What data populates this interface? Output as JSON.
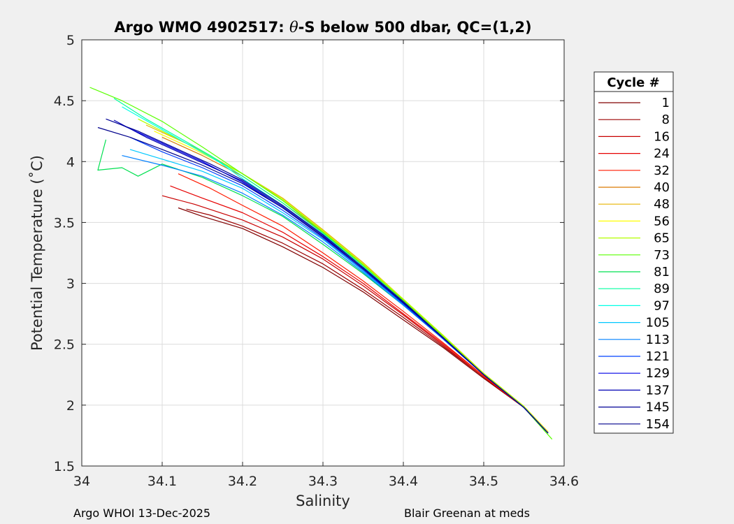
{
  "chart_data": {
    "type": "line",
    "title_prefix": "Argo WMO 4902517: ",
    "title_theta": "θ",
    "title_suffix": "-S below 500 dbar,  QC=(1,2)",
    "xlabel": "Salinity",
    "ylabel": "Potential Temperature (˚C)",
    "xlim": [
      34,
      34.6
    ],
    "ylim": [
      1.5,
      5
    ],
    "xticks": [
      34,
      34.1,
      34.2,
      34.3,
      34.4,
      34.5,
      34.6
    ],
    "xtick_labels": [
      "34",
      "34.1",
      "34.2",
      "34.3",
      "34.4",
      "34.5",
      "34.6"
    ],
    "yticks": [
      1.5,
      2,
      2.5,
      3,
      3.5,
      4,
      4.5,
      5
    ],
    "ytick_labels": [
      "1.5",
      "2",
      "2.5",
      "3",
      "3.5",
      "4",
      "4.5",
      "5"
    ],
    "grid": true,
    "legend_title": "Cycle #",
    "legend_position": "right-outside",
    "series": [
      {
        "name": "1",
        "color": "#800000",
        "salinity": [
          34.12,
          34.15,
          34.2,
          34.25,
          34.3,
          34.35,
          34.4,
          34.45,
          34.5,
          34.55,
          34.58
        ],
        "theta": [
          3.62,
          3.55,
          3.45,
          3.3,
          3.13,
          2.93,
          2.7,
          2.47,
          2.22,
          1.98,
          1.78
        ]
      },
      {
        "name": "8",
        "color": "#9b0000",
        "salinity": [
          34.13,
          34.16,
          34.2,
          34.25,
          34.3,
          34.35,
          34.4,
          34.45,
          34.5,
          34.55,
          34.58
        ],
        "theta": [
          3.61,
          3.56,
          3.47,
          3.33,
          3.16,
          2.95,
          2.72,
          2.48,
          2.23,
          1.98,
          1.78
        ]
      },
      {
        "name": "16",
        "color": "#c80000",
        "salinity": [
          34.1,
          34.14,
          34.2,
          34.25,
          34.3,
          34.35,
          34.4,
          34.45,
          34.5,
          34.55,
          34.58
        ],
        "theta": [
          3.72,
          3.65,
          3.52,
          3.38,
          3.2,
          2.98,
          2.74,
          2.49,
          2.23,
          1.98,
          1.78
        ]
      },
      {
        "name": "24",
        "color": "#e60000",
        "salinity": [
          34.11,
          34.15,
          34.2,
          34.25,
          34.3,
          34.35,
          34.4,
          34.45,
          34.5,
          34.55,
          34.58
        ],
        "theta": [
          3.8,
          3.7,
          3.58,
          3.42,
          3.22,
          3.0,
          2.75,
          2.5,
          2.24,
          1.98,
          1.78
        ]
      },
      {
        "name": "32",
        "color": "#ff1a00",
        "salinity": [
          34.12,
          34.16,
          34.2,
          34.25,
          34.3,
          34.35,
          34.4,
          34.45,
          34.5,
          34.55,
          34.58
        ],
        "theta": [
          3.9,
          3.78,
          3.64,
          3.47,
          3.25,
          3.02,
          2.77,
          2.51,
          2.24,
          1.98,
          1.78
        ]
      },
      {
        "name": "40",
        "color": "#d97a00",
        "salinity": [
          34.1,
          34.15,
          34.2,
          34.25,
          34.3,
          34.35,
          34.4,
          34.45,
          34.5,
          34.55,
          34.58
        ],
        "theta": [
          4.2,
          4.05,
          3.88,
          3.66,
          3.42,
          3.15,
          2.86,
          2.56,
          2.26,
          1.99,
          1.78
        ]
      },
      {
        "name": "48",
        "color": "#e6b400",
        "salinity": [
          34.08,
          34.14,
          34.2,
          34.25,
          34.3,
          34.35,
          34.4,
          34.45,
          34.5,
          34.55,
          34.58
        ],
        "theta": [
          4.3,
          4.12,
          3.9,
          3.7,
          3.44,
          3.17,
          2.87,
          2.57,
          2.26,
          1.99,
          1.78
        ]
      },
      {
        "name": "56",
        "color": "#ffff00",
        "salinity": [
          34.09,
          34.14,
          34.2,
          34.25,
          34.3,
          34.35,
          34.4,
          34.45,
          34.5,
          34.55,
          34.58
        ],
        "theta": [
          4.25,
          4.1,
          3.9,
          3.68,
          3.43,
          3.16,
          2.87,
          2.57,
          2.26,
          1.99,
          1.78
        ]
      },
      {
        "name": "65",
        "color": "#b4ff00",
        "salinity": [
          34.07,
          34.13,
          34.2,
          34.25,
          34.3,
          34.35,
          34.4,
          34.45,
          34.5,
          34.55,
          34.58
        ],
        "theta": [
          4.35,
          4.15,
          3.9,
          3.69,
          3.43,
          3.16,
          2.87,
          2.57,
          2.26,
          1.99,
          1.77
        ]
      },
      {
        "name": "73",
        "color": "#5aff00",
        "salinity": [
          34.01,
          34.05,
          34.1,
          34.15,
          34.2,
          34.25,
          34.3,
          34.35,
          34.4,
          34.45,
          34.5,
          34.55,
          34.585
        ],
        "theta": [
          4.61,
          4.5,
          4.33,
          4.12,
          3.9,
          3.68,
          3.42,
          3.15,
          2.86,
          2.56,
          2.25,
          1.98,
          1.72
        ]
      },
      {
        "name": "81",
        "color": "#00e050",
        "salinity": [
          34.03,
          34.02,
          34.05,
          34.07,
          34.1,
          34.15,
          34.2,
          34.25,
          34.3,
          34.35,
          34.4,
          34.45,
          34.5,
          34.55,
          34.58
        ],
        "theta": [
          4.18,
          3.93,
          3.95,
          3.88,
          3.98,
          3.87,
          3.72,
          3.55,
          3.32,
          3.08,
          2.82,
          2.54,
          2.25,
          1.98,
          1.77
        ]
      },
      {
        "name": "89",
        "color": "#00ffa0",
        "salinity": [
          34.04,
          34.08,
          34.12,
          34.16,
          34.2,
          34.25,
          34.3,
          34.35,
          34.4,
          34.45,
          34.5,
          34.55,
          34.58
        ],
        "theta": [
          4.52,
          4.35,
          4.2,
          4.05,
          3.88,
          3.66,
          3.41,
          3.14,
          2.85,
          2.55,
          2.25,
          1.98,
          1.77
        ]
      },
      {
        "name": "97",
        "color": "#00ffe6",
        "salinity": [
          34.05,
          34.09,
          34.13,
          34.17,
          34.2,
          34.25,
          34.3,
          34.35,
          34.4,
          34.45,
          34.5,
          34.55,
          34.58
        ],
        "theta": [
          4.45,
          4.3,
          4.15,
          4.0,
          3.86,
          3.64,
          3.4,
          3.13,
          2.85,
          2.55,
          2.25,
          1.98,
          1.77
        ]
      },
      {
        "name": "105",
        "color": "#00c8ff",
        "salinity": [
          34.06,
          34.1,
          34.15,
          34.2,
          34.25,
          34.3,
          34.35,
          34.4,
          34.45,
          34.5,
          34.55,
          34.58
        ],
        "theta": [
          4.1,
          4.02,
          3.92,
          3.78,
          3.58,
          3.36,
          3.1,
          2.83,
          2.54,
          2.25,
          1.98,
          1.77
        ]
      },
      {
        "name": "113",
        "color": "#0080ff",
        "salinity": [
          34.05,
          34.1,
          34.15,
          34.2,
          34.25,
          34.3,
          34.35,
          34.4,
          34.45,
          34.5,
          34.55,
          34.58
        ],
        "theta": [
          4.05,
          3.97,
          3.88,
          3.74,
          3.56,
          3.34,
          3.09,
          2.82,
          2.54,
          2.25,
          1.98,
          1.77
        ]
      },
      {
        "name": "121",
        "color": "#0040ff",
        "salinity": [
          34.06,
          34.1,
          34.15,
          34.2,
          34.25,
          34.3,
          34.35,
          34.4,
          34.45,
          34.5,
          34.55,
          34.58
        ],
        "theta": [
          4.2,
          4.08,
          3.95,
          3.8,
          3.6,
          3.37,
          3.11,
          2.83,
          2.54,
          2.25,
          1.98,
          1.77
        ]
      },
      {
        "name": "129",
        "color": "#0000e6",
        "salinity": [
          34.05,
          34.1,
          34.15,
          34.2,
          34.25,
          34.3,
          34.35,
          34.4,
          34.45,
          34.5,
          34.55,
          34.58
        ],
        "theta": [
          4.3,
          4.15,
          4.0,
          3.83,
          3.62,
          3.38,
          3.12,
          2.84,
          2.55,
          2.25,
          1.98,
          1.77
        ]
      },
      {
        "name": "137",
        "color": "#0000b4",
        "salinity": [
          34.04,
          34.08,
          34.12,
          34.16,
          34.2,
          34.25,
          34.3,
          34.35,
          34.4,
          34.45,
          34.5,
          34.55,
          34.58
        ],
        "theta": [
          4.34,
          4.2,
          4.08,
          3.96,
          3.84,
          3.63,
          3.39,
          3.12,
          2.84,
          2.55,
          2.25,
          1.98,
          1.77
        ]
      },
      {
        "name": "145",
        "color": "#000096",
        "salinity": [
          34.03,
          34.07,
          34.12,
          34.16,
          34.2,
          34.25,
          34.3,
          34.35,
          34.4,
          34.45,
          34.5,
          34.55,
          34.58
        ],
        "theta": [
          4.35,
          4.25,
          4.1,
          3.98,
          3.85,
          3.64,
          3.4,
          3.13,
          2.85,
          2.55,
          2.25,
          1.98,
          1.77
        ]
      },
      {
        "name": "154",
        "color": "#00008c",
        "salinity": [
          34.02,
          34.06,
          34.1,
          34.15,
          34.2,
          34.25,
          34.3,
          34.35,
          34.4,
          34.45,
          34.5,
          34.55,
          34.58
        ],
        "theta": [
          4.28,
          4.2,
          4.1,
          3.97,
          3.82,
          3.62,
          3.38,
          3.12,
          2.84,
          2.55,
          2.25,
          1.98,
          1.77
        ]
      }
    ]
  },
  "footer": {
    "left": "Argo WHOI 13-Dec-2025",
    "right": "Blair Greenan at meds"
  }
}
